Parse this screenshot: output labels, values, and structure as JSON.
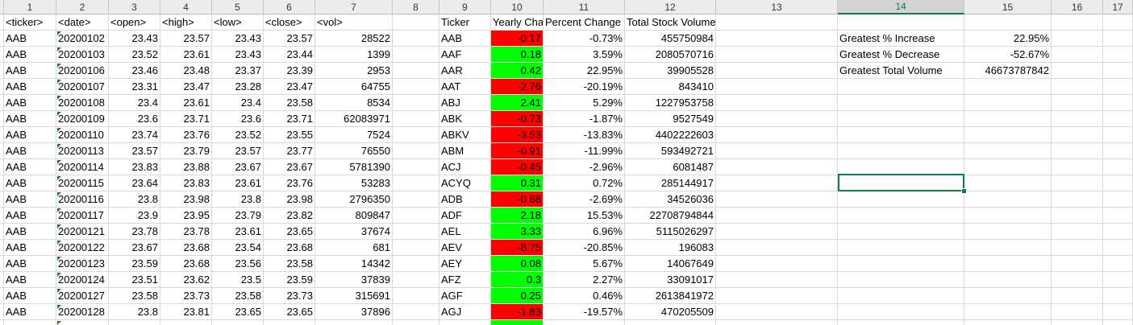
{
  "columns": [
    "1",
    "2",
    "3",
    "4",
    "5",
    "6",
    "7",
    "8",
    "9",
    "10",
    "11",
    "12",
    "13",
    "14",
    "15",
    "16",
    "17"
  ],
  "selected_column": "14",
  "header_row": [
    "<ticker>",
    "<date>",
    "<open>",
    "<high>",
    "<low>",
    "<close>",
    "<vol>"
  ],
  "raw_rows": [
    [
      "AAB",
      "20200102",
      "23.43",
      "23.57",
      "23.43",
      "23.57",
      "28522"
    ],
    [
      "AAB",
      "20200103",
      "23.52",
      "23.61",
      "23.43",
      "23.44",
      "1399"
    ],
    [
      "AAB",
      "20200106",
      "23.46",
      "23.48",
      "23.37",
      "23.39",
      "2953"
    ],
    [
      "AAB",
      "20200107",
      "23.31",
      "23.47",
      "23.28",
      "23.47",
      "64755"
    ],
    [
      "AAB",
      "20200108",
      "23.4",
      "23.61",
      "23.4",
      "23.58",
      "8534"
    ],
    [
      "AAB",
      "20200109",
      "23.6",
      "23.71",
      "23.6",
      "23.71",
      "62083971"
    ],
    [
      "AAB",
      "20200110",
      "23.74",
      "23.76",
      "23.52",
      "23.55",
      "7524"
    ],
    [
      "AAB",
      "20200113",
      "23.57",
      "23.79",
      "23.57",
      "23.77",
      "76550"
    ],
    [
      "AAB",
      "20200114",
      "23.83",
      "23.88",
      "23.67",
      "23.67",
      "5781390"
    ],
    [
      "AAB",
      "20200115",
      "23.64",
      "23.83",
      "23.61",
      "23.76",
      "53283"
    ],
    [
      "AAB",
      "20200116",
      "23.8",
      "23.98",
      "23.8",
      "23.98",
      "2796350"
    ],
    [
      "AAB",
      "20200117",
      "23.9",
      "23.95",
      "23.79",
      "23.82",
      "809847"
    ],
    [
      "AAB",
      "20200121",
      "23.78",
      "23.78",
      "23.61",
      "23.65",
      "37674"
    ],
    [
      "AAB",
      "20200122",
      "23.67",
      "23.68",
      "23.54",
      "23.68",
      "681"
    ],
    [
      "AAB",
      "20200123",
      "23.59",
      "23.68",
      "23.56",
      "23.58",
      "14342"
    ],
    [
      "AAB",
      "20200124",
      "23.51",
      "23.62",
      "23.5",
      "23.59",
      "37839"
    ],
    [
      "AAB",
      "20200127",
      "23.58",
      "23.73",
      "23.58",
      "23.73",
      "315691"
    ],
    [
      "AAB",
      "20200128",
      "23.8",
      "23.81",
      "23.65",
      "23.65",
      "37896"
    ]
  ],
  "summary_headers": [
    "Ticker",
    "Yearly Cha",
    "Percent Change",
    "Total Stock Volume"
  ],
  "summary_rows": [
    {
      "ticker": "AAB",
      "yearly": "-0.17",
      "percent": "-0.73%",
      "volume": "455750984",
      "positive": false
    },
    {
      "ticker": "AAF",
      "yearly": "0.18",
      "percent": "3.59%",
      "volume": "2080570716",
      "positive": true
    },
    {
      "ticker": "AAR",
      "yearly": "0.42",
      "percent": "22.95%",
      "volume": "39905528",
      "positive": true
    },
    {
      "ticker": "AAT",
      "yearly": "-2.76",
      "percent": "-20.19%",
      "volume": "843410",
      "positive": false
    },
    {
      "ticker": "ABJ",
      "yearly": "2.41",
      "percent": "5.29%",
      "volume": "1227953758",
      "positive": true
    },
    {
      "ticker": "ABK",
      "yearly": "-0.73",
      "percent": "-1.87%",
      "volume": "9527549",
      "positive": false
    },
    {
      "ticker": "ABKV",
      "yearly": "-3.53",
      "percent": "-13.83%",
      "volume": "4402222603",
      "positive": false
    },
    {
      "ticker": "ABM",
      "yearly": "-0.91",
      "percent": "-11.99%",
      "volume": "593492721",
      "positive": false
    },
    {
      "ticker": "ACJ",
      "yearly": "-0.45",
      "percent": "-2.96%",
      "volume": "6081487",
      "positive": false
    },
    {
      "ticker": "ACYQ",
      "yearly": "0.31",
      "percent": "0.72%",
      "volume": "285144917",
      "positive": true
    },
    {
      "ticker": "ADB",
      "yearly": "-0.68",
      "percent": "-2.69%",
      "volume": "34526036",
      "positive": false
    },
    {
      "ticker": "ADF",
      "yearly": "2.18",
      "percent": "15.53%",
      "volume": "22708794844",
      "positive": true
    },
    {
      "ticker": "AEL",
      "yearly": "3.33",
      "percent": "6.96%",
      "volume": "5115026297",
      "positive": true
    },
    {
      "ticker": "AEV",
      "yearly": "-8.75",
      "percent": "-20.85%",
      "volume": "196083",
      "positive": false
    },
    {
      "ticker": "AEY",
      "yearly": "0.08",
      "percent": "5.67%",
      "volume": "14067649",
      "positive": true
    },
    {
      "ticker": "AFZ",
      "yearly": "0.3",
      "percent": "2.27%",
      "volume": "33091017",
      "positive": true
    },
    {
      "ticker": "AGF",
      "yearly": "0.25",
      "percent": "0.46%",
      "volume": "2613841972",
      "positive": true
    },
    {
      "ticker": "AGJ",
      "yearly": "-1.83",
      "percent": "-19.57%",
      "volume": "470205509",
      "positive": false
    }
  ],
  "greatest": [
    {
      "label": "Greatest % Increase",
      "value": "22.95%"
    },
    {
      "label": "Greatest % Decrease",
      "value": "-52.67%"
    },
    {
      "label": "Greatest Total Volume",
      "value": "46673787842"
    }
  ],
  "colors": {
    "positive": "#00ff00",
    "negative": "#ff0000",
    "selection": "#107c41"
  }
}
